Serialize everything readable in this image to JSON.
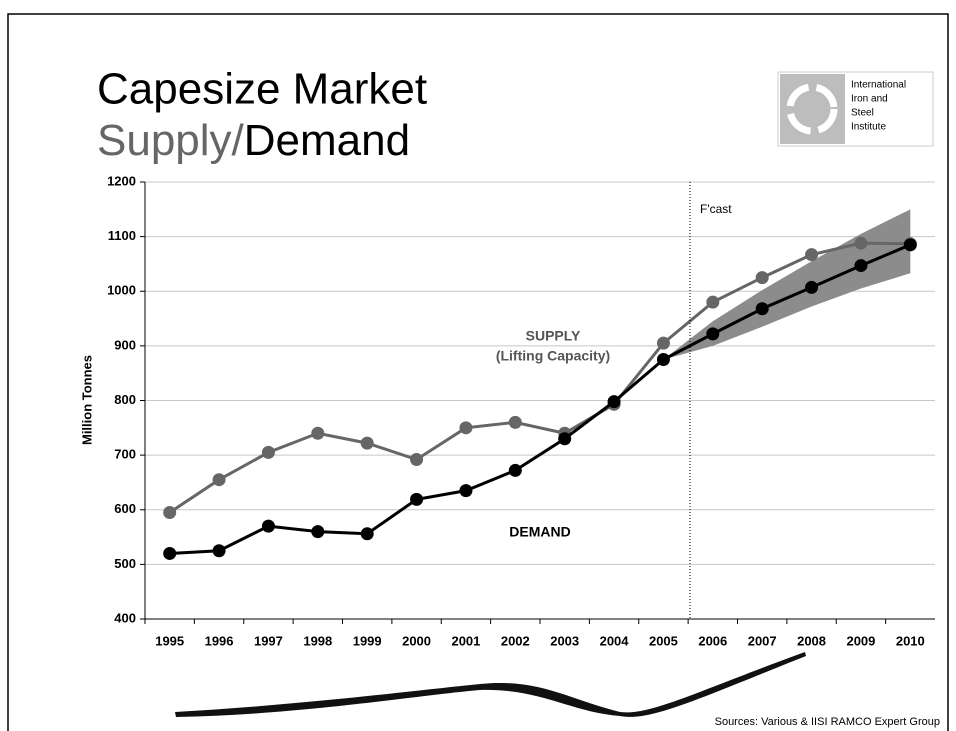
{
  "chart_data": {
    "type": "line",
    "title": "Capesize Market",
    "subtitle_supply": "Supply/",
    "subtitle_demand": "Demand",
    "logo_text": [
      "International",
      "Iron and",
      "Steel",
      "Institute"
    ],
    "y_label": "Million Tonnes",
    "forecast_label": "F'cast",
    "annotations": [
      "SUPPLY",
      "(Lifting Capacity)",
      "DEMAND"
    ],
    "source": "Sources: Various & IISI RAMCO Expert Group",
    "categories": [
      "1995",
      "1996",
      "1997",
      "1998",
      "1999",
      "2000",
      "2001",
      "2002",
      "2003",
      "2004",
      "2005",
      "2006",
      "2007",
      "2008",
      "2009",
      "2010"
    ],
    "series": [
      {
        "name": "SUPPLY",
        "color": "#666666",
        "values": [
          595,
          655,
          705,
          740,
          722,
          692,
          750,
          760,
          740,
          793,
          905,
          980,
          1025,
          1067,
          1088,
          1087
        ]
      },
      {
        "name": "DEMAND",
        "color": "#000000",
        "values": [
          520,
          525,
          570,
          560,
          556,
          619,
          635,
          672,
          730,
          798,
          875,
          922,
          968,
          1007,
          1047,
          1085
        ]
      }
    ],
    "forecast_band": {
      "color": "#8c8c8c",
      "start_index": 10,
      "low": [
        875,
        900,
        935,
        972,
        1005,
        1033
      ],
      "high": [
        875,
        945,
        1002,
        1055,
        1105,
        1150
      ]
    },
    "ylim": [
      400,
      1200
    ],
    "yticks": [
      400,
      500,
      600,
      700,
      800,
      900,
      1000,
      1100,
      1200
    ],
    "grid": true
  }
}
